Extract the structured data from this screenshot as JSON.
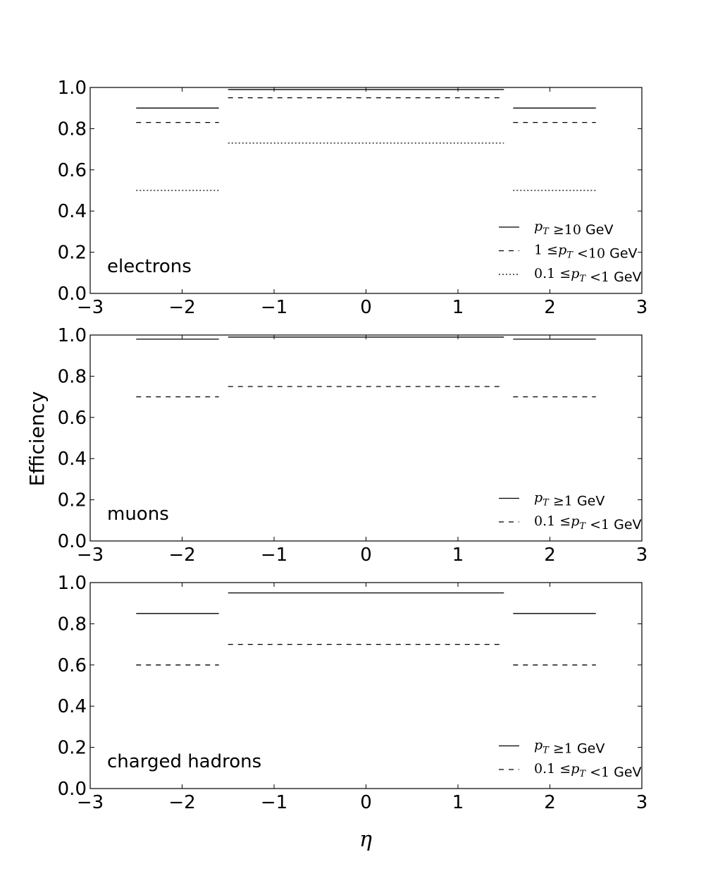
{
  "y_axis_label": "Efficiency",
  "x_axis_label": "η",
  "chart_data": [
    {
      "type": "line",
      "panel_label": "electrons",
      "xlim": [
        -3,
        3
      ],
      "ylim": [
        0.0,
        1.0
      ],
      "x_ticks": [
        "−3",
        "−2",
        "−1",
        "0",
        "1",
        "2",
        "3"
      ],
      "y_ticks": [
        "0.0",
        "0.2",
        "0.4",
        "0.6",
        "0.8",
        "1.0"
      ],
      "legend_position": "bottom-right",
      "series": [
        {
          "legend": {
            "pre": "",
            "var": "p",
            "sub": "T",
            "post": " ≥10 ",
            "unit": "GeV"
          },
          "style": "solid",
          "segments": [
            {
              "x0": -2.5,
              "x1": -1.6,
              "y": 0.9
            },
            {
              "x0": -1.5,
              "x1": 1.5,
              "y": 0.99
            },
            {
              "x0": 1.6,
              "x1": 2.5,
              "y": 0.9
            }
          ]
        },
        {
          "legend": {
            "pre": "1 ≤",
            "var": "p",
            "sub": "T",
            "post": " <10 ",
            "unit": "GeV"
          },
          "style": "dashed",
          "segments": [
            {
              "x0": -2.5,
              "x1": -1.6,
              "y": 0.83
            },
            {
              "x0": -1.5,
              "x1": 1.5,
              "y": 0.95
            },
            {
              "x0": 1.6,
              "x1": 2.5,
              "y": 0.83
            }
          ]
        },
        {
          "legend": {
            "pre": "0.1 ≤",
            "var": "p",
            "sub": "T",
            "post": " <1 ",
            "unit": "GeV"
          },
          "style": "dotted",
          "segments": [
            {
              "x0": -2.5,
              "x1": -1.6,
              "y": 0.5
            },
            {
              "x0": -1.5,
              "x1": 1.5,
              "y": 0.73
            },
            {
              "x0": 1.6,
              "x1": 2.5,
              "y": 0.5
            }
          ]
        }
      ]
    },
    {
      "type": "line",
      "panel_label": "muons",
      "xlim": [
        -3,
        3
      ],
      "ylim": [
        0.0,
        1.0
      ],
      "x_ticks": [
        "−3",
        "−2",
        "−1",
        "0",
        "1",
        "2",
        "3"
      ],
      "y_ticks": [
        "0.0",
        "0.2",
        "0.4",
        "0.6",
        "0.8",
        "1.0"
      ],
      "legend_position": "bottom-right",
      "series": [
        {
          "legend": {
            "pre": "",
            "var": "p",
            "sub": "T",
            "post": " ≥1 ",
            "unit": "GeV"
          },
          "style": "solid",
          "segments": [
            {
              "x0": -2.5,
              "x1": -1.6,
              "y": 0.98
            },
            {
              "x0": -1.5,
              "x1": 1.5,
              "y": 0.99
            },
            {
              "x0": 1.6,
              "x1": 2.5,
              "y": 0.98
            }
          ]
        },
        {
          "legend": {
            "pre": "0.1 ≤",
            "var": "p",
            "sub": "T",
            "post": " <1 ",
            "unit": "GeV"
          },
          "style": "dashed",
          "segments": [
            {
              "x0": -2.5,
              "x1": -1.6,
              "y": 0.7
            },
            {
              "x0": -1.5,
              "x1": 1.5,
              "y": 0.75
            },
            {
              "x0": 1.6,
              "x1": 2.5,
              "y": 0.7
            }
          ]
        }
      ]
    },
    {
      "type": "line",
      "panel_label": "charged hadrons",
      "xlim": [
        -3,
        3
      ],
      "ylim": [
        0.0,
        1.0
      ],
      "x_ticks": [
        "−3",
        "−2",
        "−1",
        "0",
        "1",
        "2",
        "3"
      ],
      "y_ticks": [
        "0.0",
        "0.2",
        "0.4",
        "0.6",
        "0.8",
        "1.0"
      ],
      "legend_position": "bottom-right",
      "series": [
        {
          "legend": {
            "pre": "",
            "var": "p",
            "sub": "T",
            "post": " ≥1 ",
            "unit": "GeV"
          },
          "style": "solid",
          "segments": [
            {
              "x0": -2.5,
              "x1": -1.6,
              "y": 0.85
            },
            {
              "x0": -1.5,
              "x1": 1.5,
              "y": 0.95
            },
            {
              "x0": 1.6,
              "x1": 2.5,
              "y": 0.85
            }
          ]
        },
        {
          "legend": {
            "pre": "0.1 ≤",
            "var": "p",
            "sub": "T",
            "post": " <1 ",
            "unit": "GeV"
          },
          "style": "dashed",
          "segments": [
            {
              "x0": -2.5,
              "x1": -1.6,
              "y": 0.6
            },
            {
              "x0": -1.5,
              "x1": 1.5,
              "y": 0.7
            },
            {
              "x0": 1.6,
              "x1": 2.5,
              "y": 0.6
            }
          ]
        }
      ]
    }
  ]
}
